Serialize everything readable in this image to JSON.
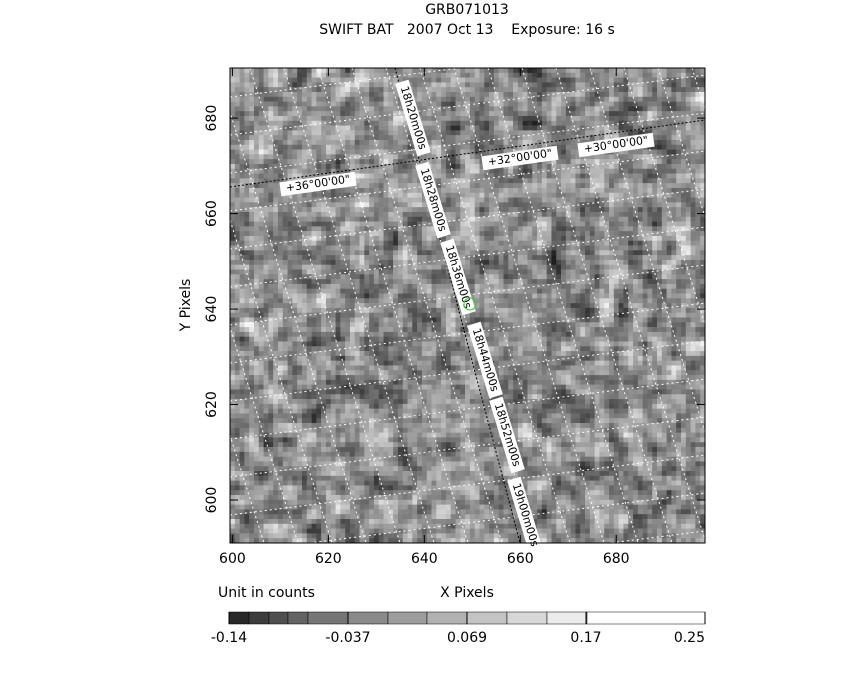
{
  "chart_data": {
    "type": "image",
    "title": "GRB071013",
    "subtitle": "SWIFT BAT   2007 Oct 13    Exposure: 16 s",
    "xlabel": "X Pixels",
    "ylabel": "Y Pixels",
    "xlim": [
      599.5,
      698.5
    ],
    "xticks": [
      600,
      620,
      640,
      660,
      680
    ],
    "ylim": [
      591,
      690.5
    ],
    "yticks": [
      600,
      620,
      640,
      660,
      680
    ],
    "annotations": [
      "18h20m00s",
      "18h28m00s",
      "18h36m00s",
      "18h44m00s",
      "18h52m00s",
      "19h00m00s",
      "+36°00'00\"",
      "+32°00'00\"",
      "+30°00'00\""
    ],
    "colorbar": {
      "label": "Unit in counts",
      "ticks": [
        -0.14,
        -0.037,
        0.069,
        0.17,
        0.25
      ]
    }
  }
}
